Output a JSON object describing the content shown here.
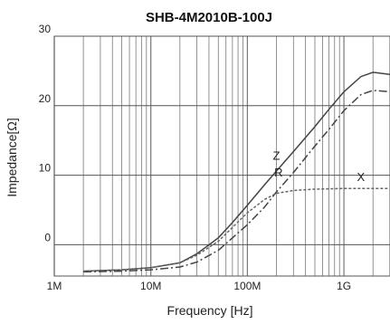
{
  "chart_data": {
    "type": "line",
    "title": "SHB-4M2010B-100J",
    "xlabel": "Frequency  [Hz]",
    "ylabel": "Impedance[Ω]",
    "x_scale": "log",
    "xlim": [
      1000000,
      3000000000
    ],
    "ylim": [
      -4.5,
      30
    ],
    "grid": true,
    "x_ticks": [
      {
        "value": 1000000,
        "label": "1M"
      },
      {
        "value": 10000000,
        "label": "10M"
      },
      {
        "value": 100000000,
        "label": "100M"
      },
      {
        "value": 1000000000,
        "label": "1G"
      }
    ],
    "y_ticks": [
      {
        "value": 0,
        "label": "0"
      },
      {
        "value": 10,
        "label": "10"
      },
      {
        "value": 20,
        "label": "20"
      },
      {
        "value": 30,
        "label": "30"
      }
    ],
    "series": [
      {
        "name": "Z",
        "style": "solid",
        "color": "#444444",
        "x": [
          2000000,
          5000000,
          10000000,
          20000000,
          30000000,
          50000000,
          70000000,
          100000000,
          150000000,
          200000000,
          300000000,
          500000000,
          700000000,
          1000000000,
          1500000000,
          2000000000,
          3000000000
        ],
        "y": [
          -3.8,
          -3.6,
          -3.3,
          -2.6,
          -1.3,
          1.0,
          3.2,
          5.7,
          8.6,
          10.6,
          13.4,
          17.0,
          19.5,
          22.0,
          24.2,
          24.8,
          24.5
        ]
      },
      {
        "name": "R",
        "style": "dashdot",
        "color": "#444444",
        "x": [
          2000000,
          5000000,
          10000000,
          20000000,
          30000000,
          50000000,
          70000000,
          100000000,
          150000000,
          200000000,
          300000000,
          500000000,
          700000000,
          1000000000,
          1500000000,
          2000000000,
          3000000000
        ],
        "y": [
          -3.9,
          -3.8,
          -3.6,
          -3.2,
          -2.5,
          -0.8,
          1.0,
          2.9,
          5.4,
          7.6,
          10.4,
          14.2,
          16.6,
          19.3,
          21.6,
          22.2,
          22.0
        ]
      },
      {
        "name": "X",
        "style": "dotted",
        "color": "#666666",
        "x": [
          2000000,
          5000000,
          10000000,
          20000000,
          30000000,
          50000000,
          70000000,
          100000000,
          150000000,
          200000000,
          300000000,
          500000000,
          1000000000,
          2000000000,
          3000000000
        ],
        "y": [
          -3.8,
          -3.6,
          -3.3,
          -2.6,
          -1.5,
          0.5,
          2.5,
          4.6,
          6.5,
          7.4,
          7.8,
          8.0,
          8.1,
          8.1,
          8.1
        ]
      }
    ]
  }
}
